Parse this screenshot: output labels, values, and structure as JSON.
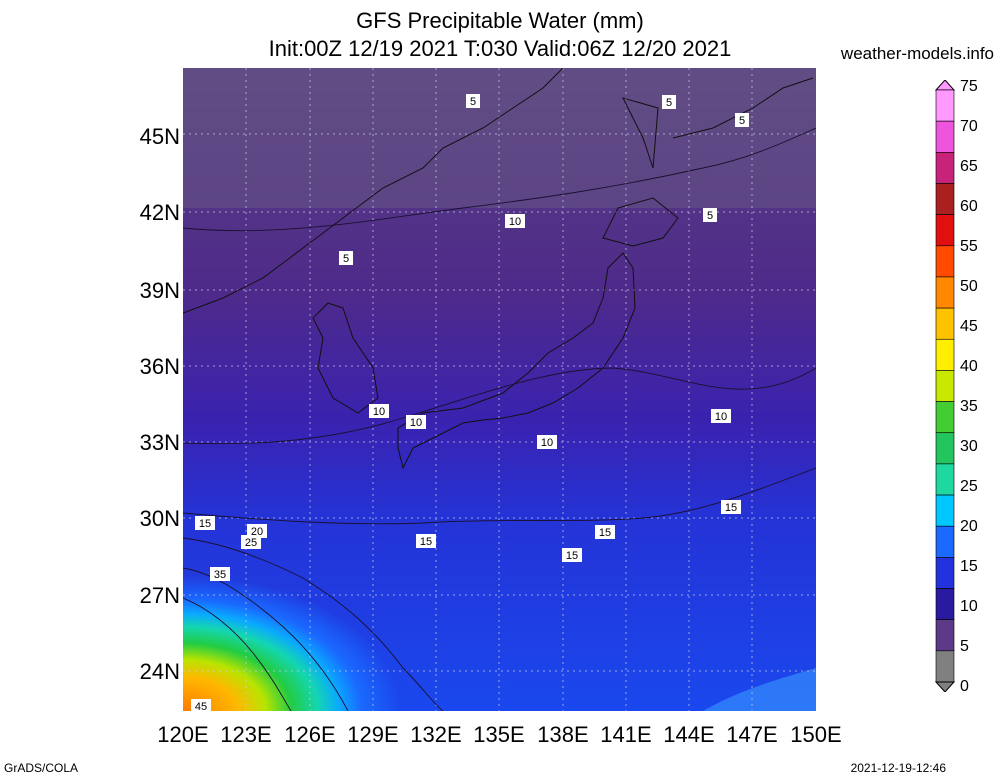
{
  "title_line1": "GFS Precipitable Water (mm)",
  "title_line2": "Init:00Z 12/19 2021 T:030 Valid:06Z 12/20 2021",
  "site": "weather-models.info",
  "footer_left": "GrADS/COLA",
  "footer_right": "2021-12-19-12:46",
  "lat_labels": [
    "45N",
    "42N",
    "39N",
    "36N",
    "33N",
    "30N",
    "27N",
    "24N"
  ],
  "lon_labels": [
    "120E",
    "123E",
    "126E",
    "129E",
    "132E",
    "135E",
    "138E",
    "141E",
    "144E",
    "147E",
    "150E"
  ],
  "colorbar": {
    "levels": [
      "75",
      "70",
      "65",
      "60",
      "55",
      "50",
      "45",
      "40",
      "35",
      "30",
      "25",
      "20",
      "15",
      "10",
      "5",
      "0"
    ],
    "colors": [
      "#ff99ff",
      "#ee55dd",
      "#c8237a",
      "#aa2020",
      "#e01010",
      "#ff4a00",
      "#ff8800",
      "#ffc200",
      "#ffee00",
      "#c8e800",
      "#44cc33",
      "#22c55e",
      "#1ed8a0",
      "#00c8ff",
      "#1a6aff",
      "#2233dd",
      "#2a1aa0",
      "#5c3a88",
      "#808080"
    ]
  },
  "contour_labels": [
    "5",
    "5",
    "5",
    "5",
    "5",
    "10",
    "10",
    "10",
    "10",
    "10",
    "15",
    "15",
    "15",
    "15",
    "15",
    "20",
    "25",
    "35",
    "45"
  ]
}
